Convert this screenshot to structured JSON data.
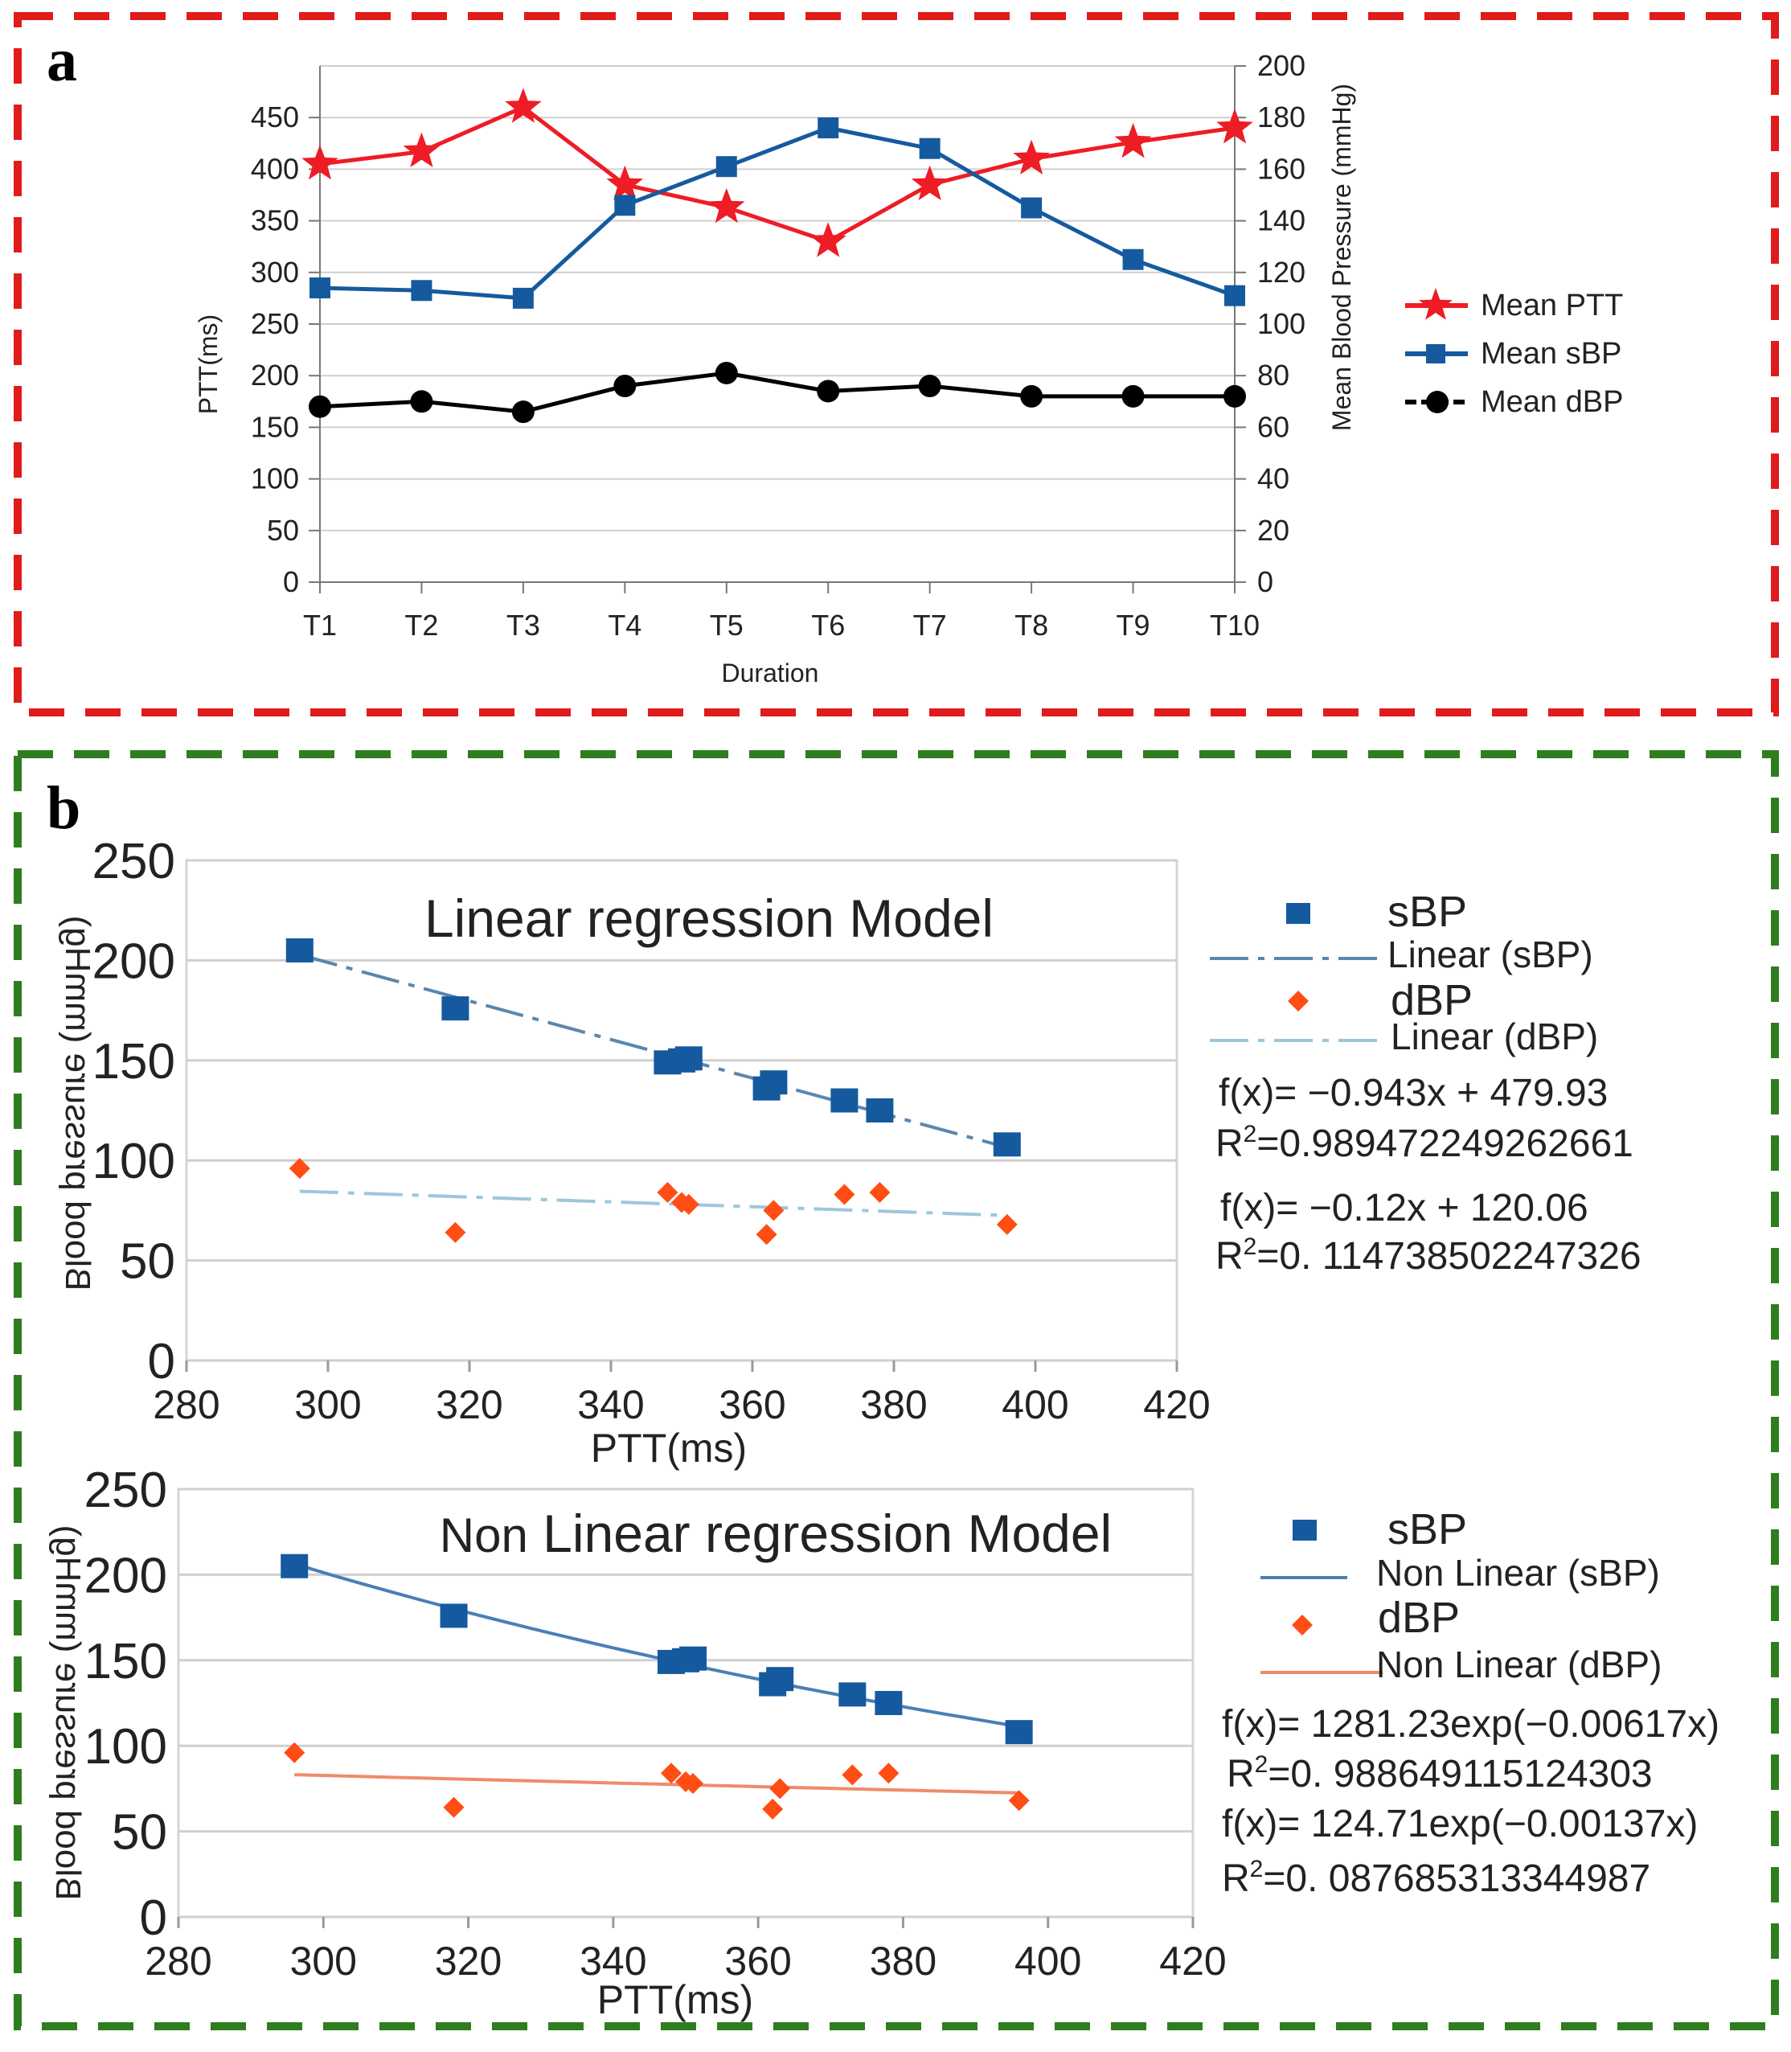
{
  "colors": {
    "panel_a_border": "#e01b1b",
    "panel_b_border": "#2e7d1e",
    "ptt": "#ee1c25",
    "sbp": "#155a9e",
    "dbp_a": "#000000",
    "dbp_b": "#ff4d14",
    "sbp_linear": "#5b87ad",
    "dbp_linear": "#9ec6dc",
    "sbp_nonlinear": "#4a7fb5",
    "dbp_nonlinear": "#f08a6a",
    "grid": "#cfcfcf"
  },
  "chart_data": [
    {
      "panel": "a",
      "type": "line",
      "xlabel": "Duration",
      "ylabel": "PTT(ms)",
      "y2label": "Mean Blood Pressure (mmHg)",
      "categories": [
        "T1",
        "T2",
        "T3",
        "T4",
        "T5",
        "T6",
        "T7",
        "T8",
        "T9",
        "T10"
      ],
      "ylim": [
        0,
        500
      ],
      "y_ticks": [
        "0",
        "50",
        "100",
        "150",
        "200",
        "250",
        "300",
        "350",
        "400",
        "450"
      ],
      "y2lim": [
        0,
        200
      ],
      "y2_ticks": [
        "0",
        "20",
        "40",
        "60",
        "80",
        "100",
        "120",
        "140",
        "160",
        "180",
        "200"
      ],
      "series": [
        {
          "name": "Mean PTT",
          "axis": "left",
          "marker": "star",
          "values": [
            405,
            417,
            460,
            385,
            363,
            330,
            385,
            410,
            426,
            440
          ]
        },
        {
          "name": "Mean sBP",
          "axis": "right",
          "marker": "square",
          "values": [
            114,
            113,
            110,
            146,
            161,
            176,
            168,
            145,
            125,
            111
          ]
        },
        {
          "name": "Mean dBP",
          "axis": "right",
          "marker": "circle",
          "values": [
            68,
            70,
            66,
            76,
            81,
            74,
            76,
            72,
            72,
            72
          ]
        }
      ],
      "legend": "right"
    },
    {
      "panel": "b-top",
      "type": "scatter",
      "title": "Linear regression Model",
      "xlabel": "PTT(ms)",
      "ylabel": "Blood pressure (mmHg)",
      "xlim": [
        280,
        420
      ],
      "x_ticks": [
        "280",
        "300",
        "320",
        "340",
        "360",
        "380",
        "400",
        "420"
      ],
      "ylim": [
        0,
        250
      ],
      "y_ticks": [
        "0",
        "50",
        "100",
        "150",
        "200",
        "250"
      ],
      "series": [
        {
          "name": "sBP",
          "x": [
            296,
            318,
            348,
            350,
            351,
            362,
            363,
            373,
            378,
            396
          ],
          "y": [
            205,
            176,
            149,
            150,
            151,
            136,
            139,
            130,
            125,
            108
          ]
        },
        {
          "name": "dBP",
          "x": [
            296,
            318,
            348,
            350,
            351,
            362,
            363,
            373,
            378,
            396
          ],
          "y": [
            96,
            64,
            84,
            79,
            78,
            63,
            75,
            83,
            84,
            68
          ]
        }
      ],
      "fits": [
        {
          "name": "Linear (sBP)",
          "formula": "f(x)= −0.943x + 479.93",
          "r2_prefix": "R",
          "r2_exp": "2",
          "r2_value": "=0.989472249262661",
          "x_range": [
            296,
            396
          ],
          "y_range": [
            202.8,
            106.5
          ]
        },
        {
          "name": "Linear (dBP)",
          "formula": "f(x)= −0.12x + 120.06",
          "r2_prefix": "R",
          "r2_exp": "2",
          "r2_value": "=0. 114738502247326",
          "x_range": [
            296,
            396
          ],
          "y_range": [
            84.6,
            72.5
          ]
        }
      ],
      "legend": "right"
    },
    {
      "panel": "b-bottom",
      "type": "scatter",
      "title_part1": "Non",
      "title_part2": "Linear regression Model",
      "xlabel": "PTT(ms)",
      "ylabel": "Blood pressure (mmHg)",
      "xlim": [
        280,
        420
      ],
      "x_ticks": [
        "280",
        "300",
        "320",
        "340",
        "360",
        "380",
        "400",
        "420"
      ],
      "ylim": [
        0,
        250
      ],
      "y_ticks": [
        "0",
        "50",
        "100",
        "150",
        "200",
        "250"
      ],
      "series": [
        {
          "name": "sBP",
          "x": [
            296,
            318,
            348,
            350,
            351,
            362,
            363,
            373,
            378,
            396
          ],
          "y": [
            205,
            176,
            149,
            150,
            151,
            136,
            139,
            130,
            125,
            108
          ]
        },
        {
          "name": "dBP",
          "x": [
            296,
            318,
            348,
            350,
            351,
            362,
            363,
            373,
            378,
            396
          ],
          "y": [
            96,
            64,
            84,
            79,
            78,
            63,
            75,
            83,
            84,
            68
          ]
        }
      ],
      "fits": [
        {
          "name": "Non Linear (sBP)",
          "formula": "f(x)= 1281.23exp(−0.00617x)",
          "r2_prefix": "R",
          "r2_exp": "2",
          "r2_value": "=0. 988649115124303",
          "a": 1281.23,
          "b": -0.00617,
          "x_range": [
            296,
            396
          ]
        },
        {
          "name": "Non Linear (dBP)",
          "formula": "f(x)= 124.71exp(−0.00137x)",
          "r2_prefix": "R",
          "r2_exp": "2",
          "r2_value": "=0. 087685313344987",
          "a": 124.71,
          "b": -0.00137,
          "x_range": [
            296,
            396
          ]
        }
      ],
      "legend": "right"
    }
  ],
  "labels": {
    "panel_a": "a",
    "panel_b": "b"
  }
}
